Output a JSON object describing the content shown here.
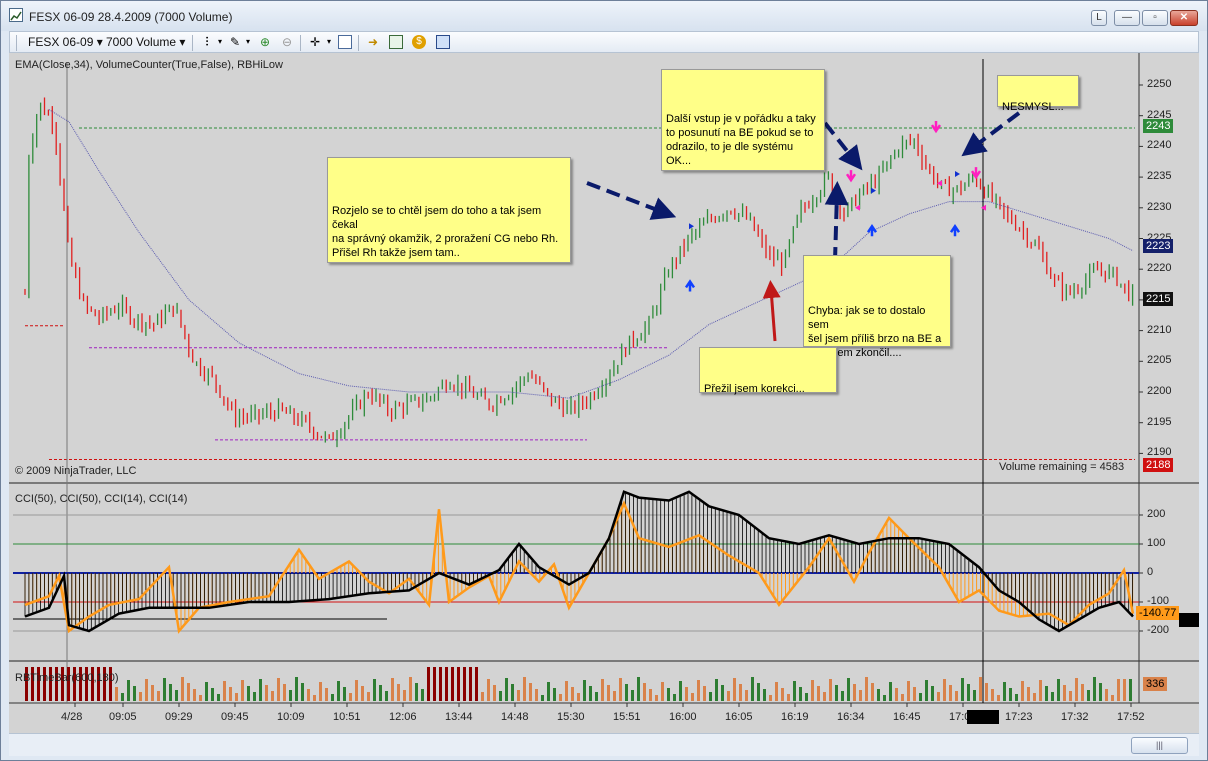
{
  "window": {
    "title": "FESX 06-09  28.4.2009 (7000 Volume)",
    "buttons": {
      "link": "L",
      "minimize": "—",
      "maximize": "▫",
      "close": "✕"
    }
  },
  "toolbar": {
    "instrument": "FESX 06-09",
    "period": "7000 Volume"
  },
  "panels": {
    "price_label": "EMA(Close,34), VolumeCounter(True,False), RBHiLow",
    "copyright": "© 2009 NinjaTrader, LLC",
    "volume_remaining": "Volume remaining = 4583",
    "cci_label": "CCI(50), CCI(50), CCI(14), CCI(14)",
    "volume_label": "RBTimeBar(600,180)"
  },
  "price_axis": [
    "2250",
    "2245",
    "2240",
    "2235",
    "2230",
    "2225",
    "2220",
    "2215",
    "2210",
    "2205",
    "2200",
    "2195",
    "2190"
  ],
  "price_boxes": {
    "upper_green": "2243",
    "ema_blue": "2223",
    "last_black": "2215",
    "low_red": "2188"
  },
  "cci_axis": [
    "200",
    "100",
    "0",
    "-100",
    "-200"
  ],
  "cci_box": "-140.77",
  "vol_box": "336",
  "time_axis": [
    "4/28",
    "09:05",
    "09:29",
    "09:45",
    "10:09",
    "10:51",
    "12:06",
    "13:44",
    "14:48",
    "15:30",
    "15:51",
    "16:00",
    "16:05",
    "16:19",
    "16:34",
    "16:45",
    "17:0",
    "17:23",
    "17:32",
    "17:52"
  ],
  "notes": [
    {
      "id": "rozjelo",
      "text": "Rozjelo se to chtěl jsem do toho a tak jsem čekal\nna správný okamžik, 2 proražení CG nebo Rh.\nPřišel Rh takže jsem tam.."
    },
    {
      "id": "dalsi",
      "text": "Další vstup je v pořádku a taky\nto posunutí na BE pokud se to\nodrazilo, to je dle systému OK..."
    },
    {
      "id": "nesmysl",
      "text": "NESMYSL..."
    },
    {
      "id": "chyba",
      "text": "Chyba: jak se to dostalo sem\nšel jsem příliš brzo na BE a\ntam jsem zkončil...."
    },
    {
      "id": "prezil",
      "text": "Přežil jsem korekci..."
    }
  ],
  "colors": {
    "up_bar": "#2e8b3a",
    "down_bar": "#e02020",
    "ema": "#5b5bb0",
    "cci_fast": "#ff9a1a",
    "cci_slow": "#000000",
    "note_bg": "#ffff88",
    "arrow_navy": "#0a1a6a",
    "arrow_red": "#c01818",
    "volume_dark": "#8b0000",
    "volume_orange": "#d9824a",
    "volume_green": "#2e7d32"
  }
}
